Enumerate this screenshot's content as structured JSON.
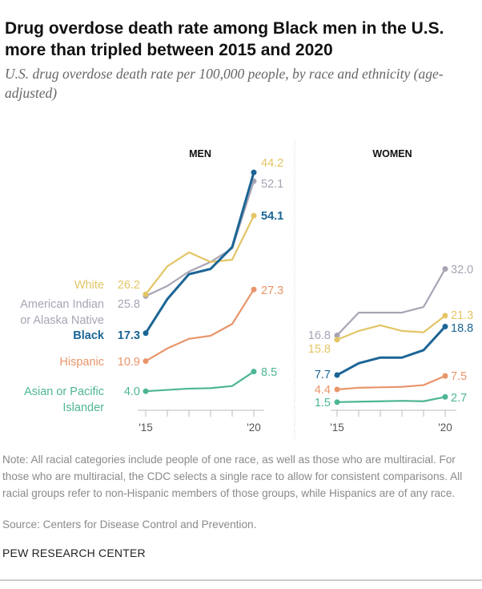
{
  "title": "Drug overdose death rate among Black men in the U.S. more than tripled between 2015 and 2020",
  "subtitle": "U.S. drug overdose death rate per 100,000 people, by race and ethnicity (age-adjusted)",
  "note": "Note: All racial categories include people of one race, as well as those who are multiracial. For those who are multiracial, the CDC selects a single race to allow for consistent comparisons. All racial groups refer to non-Hispanic members of those groups, while Hispanics are of any race.",
  "source": "Source: Centers for Disease Control and Prevention.",
  "brand": "PEW RESEARCH CENTER",
  "chart_data": [
    {
      "type": "line",
      "title": "MEN",
      "x": [
        2015,
        2016,
        2017,
        2018,
        2019,
        2020
      ],
      "tick_labels": [
        "'15",
        "'20"
      ],
      "ylim": [
        0,
        55
      ],
      "grid": false,
      "series": [
        {
          "name": "White",
          "color": "#e3c565",
          "values": [
            26.2,
            32.6,
            35.8,
            33.6,
            34.1,
            44.2
          ],
          "start_label": "26.2",
          "end_label": "44.2"
        },
        {
          "name": "American Indian or Alaska Native",
          "name_lines": [
            "American Indian",
            "or Alaska Native"
          ],
          "color": "#a9a3b4",
          "values": [
            25.8,
            28.1,
            31.4,
            33.6,
            36.7,
            52.1
          ],
          "start_label": "25.8",
          "end_label": "52.1"
        },
        {
          "name": "Black",
          "color": "#1b6595",
          "values": [
            17.3,
            25.1,
            30.8,
            32.0,
            37.0,
            54.1
          ],
          "start_label": "17.3",
          "end_label": "54.1"
        },
        {
          "name": "Hispanic",
          "color": "#e8956a",
          "values": [
            10.9,
            13.8,
            16.0,
            16.7,
            19.4,
            27.3
          ],
          "start_label": "10.9",
          "end_label": "27.3"
        },
        {
          "name": "Asian or Pacific Islander",
          "name_lines": [
            "Asian or Pacific",
            "Islander"
          ],
          "color": "#4db595",
          "values": [
            4.0,
            4.3,
            4.6,
            4.7,
            5.2,
            8.5
          ],
          "start_label": "4.0",
          "end_label": "8.5"
        }
      ]
    },
    {
      "type": "line",
      "title": "WOMEN",
      "x": [
        2015,
        2016,
        2017,
        2018,
        2019,
        2020
      ],
      "tick_labels": [
        "'15",
        "'20"
      ],
      "ylim": [
        0,
        55
      ],
      "grid": false,
      "series": [
        {
          "name": "White",
          "color": "#e3c565",
          "values": [
            15.8,
            17.8,
            19.1,
            17.8,
            17.5,
            21.3
          ],
          "start_label": "15.8",
          "end_label": "21.3"
        },
        {
          "name": "American Indian or Alaska Native",
          "color": "#a9a3b4",
          "values": [
            16.8,
            22.0,
            22.0,
            22.0,
            23.3,
            32.0
          ],
          "start_label": "16.8",
          "end_label": "32.0"
        },
        {
          "name": "Black",
          "color": "#1b6595",
          "values": [
            7.7,
            10.4,
            11.7,
            11.7,
            13.4,
            18.8
          ],
          "start_label": "7.7",
          "end_label": "18.8"
        },
        {
          "name": "Hispanic",
          "color": "#e8956a",
          "values": [
            4.4,
            4.8,
            4.9,
            5.0,
            5.4,
            7.5
          ],
          "start_label": "4.4",
          "end_label": "7.5"
        },
        {
          "name": "Asian or Pacific Islander",
          "color": "#4db595",
          "values": [
            1.5,
            1.6,
            1.7,
            1.8,
            1.7,
            2.7
          ],
          "start_label": "1.5",
          "end_label": "2.7"
        }
      ]
    }
  ]
}
